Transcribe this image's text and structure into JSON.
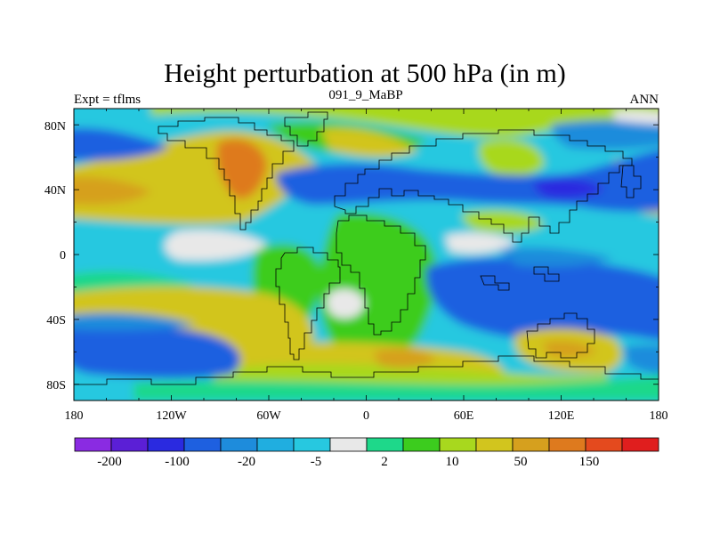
{
  "figure": {
    "title": "Height perturbation at 500 hPa (in m)",
    "left_subtitle": "Expt = tflms",
    "center_subtitle": "091_9_MaBP",
    "right_subtitle": "ANN"
  },
  "axes": {
    "lon_ticks": [
      "180",
      "120W",
      "60W",
      "0",
      "60E",
      "120E",
      "180"
    ],
    "lat_ticks": [
      "80N",
      "40N",
      "0",
      "40S",
      "80S"
    ],
    "lon_range": [
      -180,
      180
    ],
    "lat_range": [
      -90,
      90
    ]
  },
  "colorbar": {
    "colors": [
      "#8a2be2",
      "#5b1fd6",
      "#2a2ae0",
      "#1e60e0",
      "#1e8cdc",
      "#20aee0",
      "#27c8e0",
      "#e8e8e8",
      "#1ed88a",
      "#3ccc1e",
      "#a8d81e",
      "#d2c51e",
      "#d6a01e",
      "#de7a1e",
      "#e44a1e",
      "#e01e1e"
    ],
    "labels": [
      "-200",
      "-100",
      "-20",
      "-5",
      "2",
      "10",
      "50",
      "150"
    ]
  },
  "chart_data": {
    "type": "filled_contour_map",
    "title": "Height perturbation at 500 hPa (in m)",
    "variable": "500 hPa geopotential height perturbation",
    "units": "m",
    "experiment": "tflms",
    "case": "091_9_MaBP",
    "season": "ANN",
    "x_axis": {
      "name": "longitude",
      "ticks": [
        "180",
        "120W",
        "60W",
        "0",
        "60E",
        "120E",
        "180"
      ],
      "range": [
        -180,
        180
      ]
    },
    "y_axis": {
      "name": "latitude",
      "ticks": [
        "80N",
        "40N",
        "0",
        "40S",
        "80S"
      ],
      "range": [
        -90,
        90
      ]
    },
    "colorbar_labels": [
      "-200",
      "-100",
      "-20",
      "-5",
      "2",
      "10",
      "50",
      "150"
    ],
    "palette": {
      "light_cyan": "#27c8e0",
      "cyan": "#20aee0",
      "sky_blue": "#1e8cdc",
      "blue": "#1e60e0",
      "deep_blue": "#2a2ae0",
      "neutral": "#e8e8e8",
      "aqua_green": "#1ed88a",
      "green": "#3ccc1e",
      "yellow_green": "#a8d81e",
      "yellow": "#d2c51e",
      "orange_yellow": "#d6a01e",
      "orange": "#de7a1e"
    }
  }
}
